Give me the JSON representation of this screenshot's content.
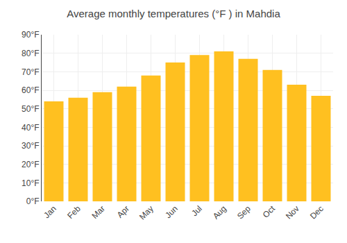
{
  "chart_data": {
    "type": "bar",
    "title": "Average monthly temperatures (°F ) in Mahdia",
    "categories": [
      "Jan",
      "Feb",
      "Mar",
      "Apr",
      "May",
      "Jun",
      "Jul",
      "Aug",
      "Sep",
      "Oct",
      "Nov",
      "Dec"
    ],
    "values": [
      54,
      56,
      59,
      62,
      68,
      75,
      79,
      81,
      77,
      71,
      63,
      57
    ],
    "color": "#FFC020",
    "ylim": [
      0,
      90
    ],
    "yticks": [
      {
        "value": 0,
        "label": "0°F"
      },
      {
        "value": 10,
        "label": "10°F"
      },
      {
        "value": 20,
        "label": "20°F"
      },
      {
        "value": 30,
        "label": "30°F"
      },
      {
        "value": 40,
        "label": "40°F"
      },
      {
        "value": 50,
        "label": "50°F"
      },
      {
        "value": 60,
        "label": "60°F"
      },
      {
        "value": 70,
        "label": "70°F"
      },
      {
        "value": 80,
        "label": "80°F"
      },
      {
        "value": 90,
        "label": "90°F"
      }
    ],
    "grid": true
  }
}
